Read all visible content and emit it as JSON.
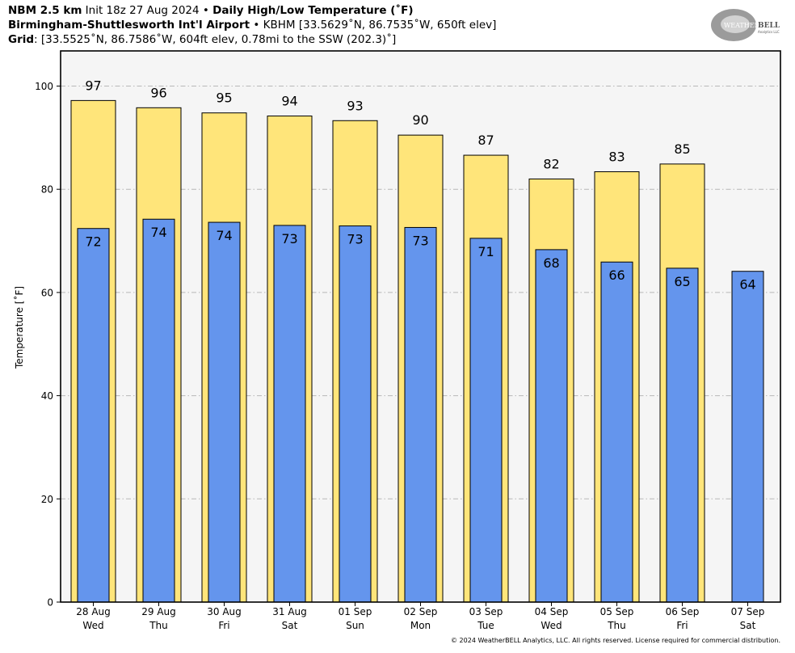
{
  "header": {
    "line1_bold": "NBM 2.5 km",
    "line1_init": " Init 18z 27 Aug 2024 • ",
    "line1_title": "Daily High/Low Temperature (˚F)",
    "line2_bold": "Birmingham-Shuttlesworth Int'l Airport",
    "line2_rest": " • KBHM [33.5629˚N, 86.7535˚W, 650ft elev]",
    "line3_bold": "Grid",
    "line3_rest": ": [33.5525˚N, 86.7586˚W, 604ft elev, 0.78mi to the SSW (202.3)˚]"
  },
  "logo": {
    "text_a": "WEATHER",
    "text_b": "BELL",
    "sub": "Analytics LLC"
  },
  "copyright": "© 2024 WeatherBELL Analytics, LLC. All rights reserved. License required for commercial distribution.",
  "chart_data": {
    "type": "bar",
    "ylabel": "Temperature [˚F]",
    "ylim": [
      0,
      105
    ],
    "yticks": [
      0,
      20,
      40,
      60,
      80,
      100
    ],
    "grid": true,
    "categories": [
      {
        "date": "28 Aug",
        "day": "Wed"
      },
      {
        "date": "29 Aug",
        "day": "Thu"
      },
      {
        "date": "30 Aug",
        "day": "Fri"
      },
      {
        "date": "31 Aug",
        "day": "Sat"
      },
      {
        "date": "01 Sep",
        "day": "Sun"
      },
      {
        "date": "02 Sep",
        "day": "Mon"
      },
      {
        "date": "03 Sep",
        "day": "Tue"
      },
      {
        "date": "04 Sep",
        "day": "Wed"
      },
      {
        "date": "05 Sep",
        "day": "Thu"
      },
      {
        "date": "06 Sep",
        "day": "Fri"
      },
      {
        "date": "07 Sep",
        "day": "Sat"
      }
    ],
    "series": [
      {
        "values": [
          97.2,
          95.8,
          94.8,
          94.2,
          93.3,
          90.5,
          86.6,
          82.0,
          83.4,
          84.9,
          null
        ],
        "labels": [
          "97",
          "96",
          "95",
          "94",
          "93",
          "90",
          "87",
          "82",
          "83",
          "85",
          null
        ],
        "color": "#ffe57a"
      },
      {
        "values": [
          72.4,
          74.2,
          73.6,
          73.0,
          72.9,
          72.6,
          70.5,
          68.3,
          65.9,
          64.7,
          64.1
        ],
        "labels": [
          "72",
          "74",
          "74",
          "73",
          "73",
          "73",
          "71",
          "68",
          "66",
          "65",
          "64"
        ],
        "color": "#6495ed"
      }
    ],
    "plot_background": "#f5f5f5"
  }
}
